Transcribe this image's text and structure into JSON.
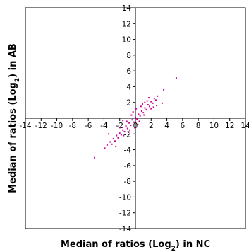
{
  "chart_data": {
    "type": "scatter",
    "xlabel": {
      "main": "Median of ratios (Log",
      "sub": "2",
      "tail": ") in NC"
    },
    "ylabel": {
      "main": "Median of ratios (Log",
      "sub": "2",
      "tail": ") in AB"
    },
    "xlim": [
      -14,
      14
    ],
    "ylim": [
      -14,
      14
    ],
    "x_ticks": [
      -14,
      -12,
      -10,
      -8,
      -6,
      -4,
      -2,
      0,
      2,
      4,
      6,
      8,
      10,
      12,
      14
    ],
    "y_ticks": [
      -14,
      -12,
      -10,
      -8,
      -6,
      -4,
      -2,
      0,
      2,
      4,
      6,
      8,
      10,
      12,
      14
    ],
    "x_tick_labels": [
      "-14",
      "-12",
      "-10",
      "-8",
      "-6",
      "-4",
      "-2",
      "0",
      "2",
      "4",
      "6",
      "8",
      "10",
      "12",
      "14"
    ],
    "y_tick_labels": [
      "-14",
      "-12",
      "-10",
      "-8",
      "-6",
      "-4",
      "-2",
      "",
      "2",
      "4",
      "6",
      "8",
      "10",
      "12",
      "14"
    ],
    "marker_color": "#cc0099",
    "grid": false,
    "series": [
      {
        "points": [
          [
            5.2,
            5.1
          ],
          [
            3.6,
            3.6
          ],
          [
            2.8,
            2.8
          ],
          [
            -5.2,
            -5.0
          ],
          [
            -3.9,
            -3.8
          ],
          [
            -3.6,
            -3.4
          ],
          [
            -3.2,
            -3.0
          ],
          [
            -3.0,
            -3.3
          ],
          [
            -2.8,
            -2.6
          ],
          [
            -2.6,
            -2.9
          ],
          [
            -2.4,
            -2.2
          ],
          [
            -2.2,
            -2.5
          ],
          [
            -2.0,
            -1.9
          ],
          [
            -1.8,
            -2.1
          ],
          [
            -1.6,
            -1.5
          ],
          [
            -1.4,
            -1.7
          ],
          [
            -1.2,
            -1.0
          ],
          [
            -1.0,
            -1.3
          ],
          [
            -0.8,
            -0.6
          ],
          [
            -0.6,
            -0.9
          ],
          [
            -0.4,
            -0.2
          ],
          [
            -0.2,
            -0.5
          ],
          [
            0.0,
            0.1
          ],
          [
            0.2,
            -0.1
          ],
          [
            0.4,
            0.5
          ],
          [
            0.6,
            0.3
          ],
          [
            0.8,
            0.9
          ],
          [
            1.0,
            0.7
          ],
          [
            1.2,
            1.3
          ],
          [
            1.4,
            1.1
          ],
          [
            1.6,
            1.7
          ],
          [
            1.8,
            1.5
          ],
          [
            2.0,
            2.1
          ],
          [
            2.2,
            1.9
          ],
          [
            2.4,
            2.5
          ],
          [
            2.6,
            2.3
          ],
          [
            -0.5,
            0.4
          ],
          [
            0.5,
            -0.4
          ],
          [
            -1.1,
            -0.4
          ],
          [
            1.1,
            0.4
          ],
          [
            -0.3,
            0.8
          ],
          [
            0.3,
            -0.8
          ],
          [
            1.5,
            2.2
          ],
          [
            -1.5,
            -2.2
          ],
          [
            0.9,
            1.8
          ],
          [
            -0.9,
            -1.8
          ],
          [
            2.0,
            1.2
          ],
          [
            -2.0,
            -1.2
          ],
          [
            -3.4,
            -2.0
          ],
          [
            -2.5,
            -3.6
          ],
          [
            1.7,
            2.6
          ],
          [
            2.7,
            1.6
          ],
          [
            0.1,
            1.2
          ],
          [
            -0.1,
            -1.2
          ],
          [
            3.4,
            1.9
          ],
          [
            -1.6,
            -0.3
          ],
          [
            1.2,
            2.0
          ],
          [
            0.7,
            1.5
          ],
          [
            -0.7,
            -1.5
          ],
          [
            2.3,
            1.4
          ]
        ]
      }
    ]
  }
}
